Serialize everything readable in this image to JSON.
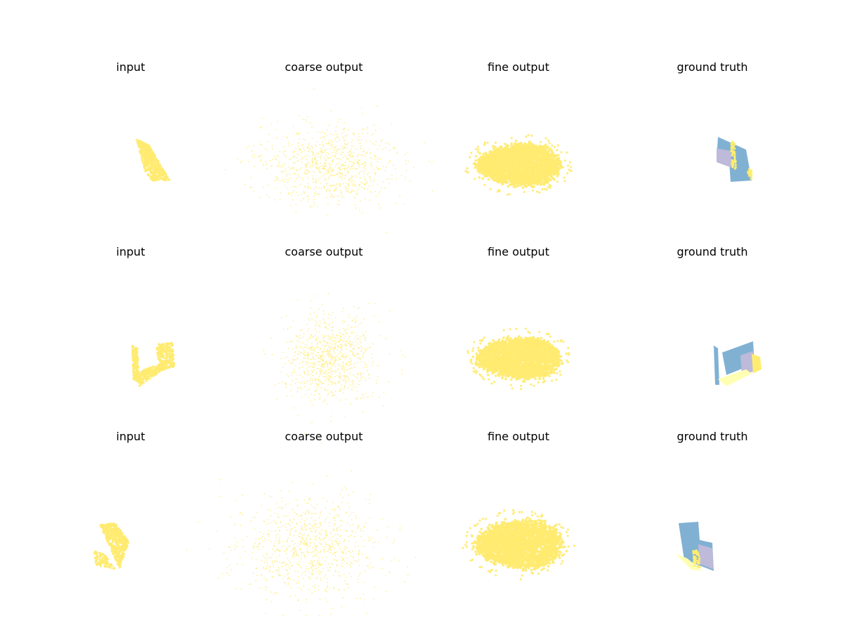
{
  "colors": {
    "point": "#ffeb70",
    "gt_blue": "#80b1d3",
    "gt_lavender": "#bebada",
    "gt_yellow": "#ffed6f",
    "gt_pale": "#ffffb3"
  },
  "chart_data": [
    {
      "type": "scatter",
      "title": "input",
      "row": 1,
      "col": 1,
      "projection": "3d point cloud",
      "axes": "off",
      "shape": "slanted_block",
      "points": 900
    },
    {
      "type": "scatter",
      "title": "coarse output",
      "row": 1,
      "col": 2,
      "projection": "3d point cloud",
      "axes": "off",
      "shape": "diffuse_cloud",
      "points": 1100
    },
    {
      "type": "scatter",
      "title": "fine output",
      "row": 1,
      "col": 3,
      "projection": "3d point cloud",
      "axes": "off",
      "shape": "dense_blob",
      "points": 5000
    },
    {
      "type": "scatter",
      "title": "ground truth",
      "row": 1,
      "col": 4,
      "projection": "3d point cloud",
      "axes": "off",
      "shape": "chair_parts",
      "series_colors": [
        "#80b1d3",
        "#bebada",
        "#ffed6f"
      ]
    },
    {
      "type": "scatter",
      "title": "input",
      "row": 2,
      "col": 1,
      "projection": "3d point cloud",
      "axes": "off",
      "shape": "u_shape",
      "points": 900
    },
    {
      "type": "scatter",
      "title": "coarse output",
      "row": 2,
      "col": 2,
      "projection": "3d point cloud",
      "axes": "off",
      "shape": "diffuse_cloud",
      "points": 1100
    },
    {
      "type": "scatter",
      "title": "fine output",
      "row": 2,
      "col": 3,
      "projection": "3d point cloud",
      "axes": "off",
      "shape": "dense_blob",
      "points": 5000
    },
    {
      "type": "scatter",
      "title": "ground truth",
      "row": 2,
      "col": 4,
      "projection": "3d point cloud",
      "axes": "off",
      "shape": "chair_parts",
      "series_colors": [
        "#80b1d3",
        "#bebada",
        "#ffffb3",
        "#ffed6f"
      ]
    },
    {
      "type": "scatter",
      "title": "input",
      "row": 3,
      "col": 1,
      "projection": "3d point cloud",
      "axes": "off",
      "shape": "upright_block",
      "points": 900
    },
    {
      "type": "scatter",
      "title": "coarse output",
      "row": 3,
      "col": 2,
      "projection": "3d point cloud",
      "axes": "off",
      "shape": "diffuse_cloud",
      "points": 1100
    },
    {
      "type": "scatter",
      "title": "fine output",
      "row": 3,
      "col": 3,
      "projection": "3d point cloud",
      "axes": "off",
      "shape": "dense_blob",
      "points": 5000
    },
    {
      "type": "scatter",
      "title": "ground truth",
      "row": 3,
      "col": 4,
      "projection": "3d point cloud",
      "axes": "off",
      "shape": "chair_parts",
      "series_colors": [
        "#80b1d3",
        "#bebada",
        "#ffffb3",
        "#ffed6f"
      ]
    }
  ]
}
